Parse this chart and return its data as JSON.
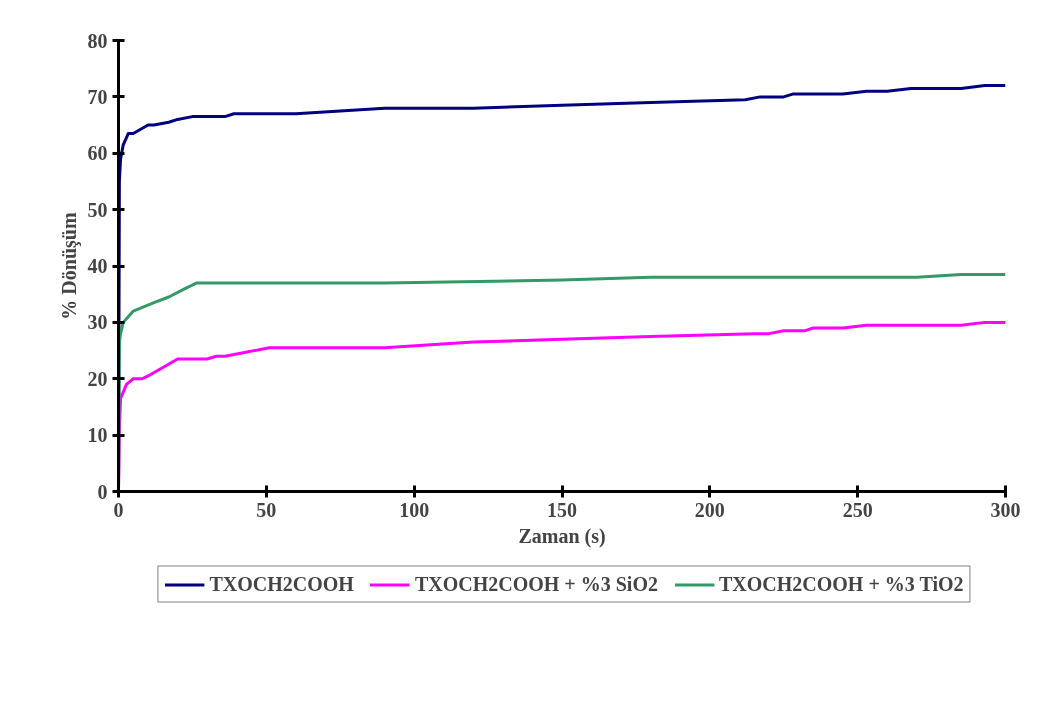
{
  "chart_data": {
    "type": "line",
    "xlabel": "Zaman (s)",
    "ylabel": "% Dönüşüm",
    "xlim": [
      0,
      300
    ],
    "ylim": [
      0,
      80
    ],
    "xticks": [
      0,
      50,
      100,
      150,
      200,
      250,
      300
    ],
    "yticks": [
      0,
      10,
      20,
      30,
      40,
      50,
      60,
      70,
      80
    ],
    "grid": false,
    "legend": "bottom",
    "marker": "none",
    "line_style": "solid",
    "series": [
      {
        "name": "TXOCH2COOH",
        "color": "#000080",
        "x": [
          0,
          0.3,
          0.7,
          1.6,
          3.3,
          5,
          10,
          12,
          17,
          20,
          25,
          36,
          39,
          50,
          60,
          90,
          120,
          150,
          180,
          212,
          217,
          225,
          228,
          235,
          245,
          253,
          260,
          268,
          285,
          293,
          300
        ],
        "values": [
          0,
          55,
          59,
          61.5,
          63.5,
          63.5,
          65,
          65,
          65.5,
          66,
          66.5,
          66.5,
          67,
          67,
          67,
          68,
          68,
          68.5,
          69,
          69.5,
          70,
          70,
          70.5,
          70.5,
          70.5,
          71,
          71,
          71.5,
          71.5,
          72,
          72
        ]
      },
      {
        "name": "TXOCH2COOH + %3 SiO2",
        "color": "#ff00ff",
        "x": [
          0,
          0.3,
          0.7,
          2.7,
          5,
          8,
          10,
          15,
          20,
          30,
          33,
          36,
          51,
          60,
          90,
          120,
          150,
          180,
          215,
          220,
          225,
          232,
          235,
          245,
          253,
          270,
          285,
          293,
          300
        ],
        "values": [
          0,
          11,
          16.5,
          19,
          20,
          20,
          20.5,
          22,
          23.5,
          23.5,
          24,
          24,
          25.5,
          25.5,
          25.5,
          26.5,
          27,
          27.5,
          28,
          28,
          28.5,
          28.5,
          29,
          29,
          29.5,
          29.5,
          29.5,
          30,
          30
        ]
      },
      {
        "name": "TXOCH2COOH + %3 TiO2",
        "color": "#339966",
        "x": [
          0,
          0.3,
          0.7,
          1.6,
          3.3,
          5,
          12,
          17,
          22.5,
          26.5,
          90,
          150,
          180,
          270,
          285,
          300
        ],
        "values": [
          0,
          26.5,
          28,
          30,
          31,
          32,
          33.5,
          34.5,
          36,
          37,
          37,
          37.5,
          38,
          38,
          38.5,
          38.5
        ]
      }
    ]
  }
}
